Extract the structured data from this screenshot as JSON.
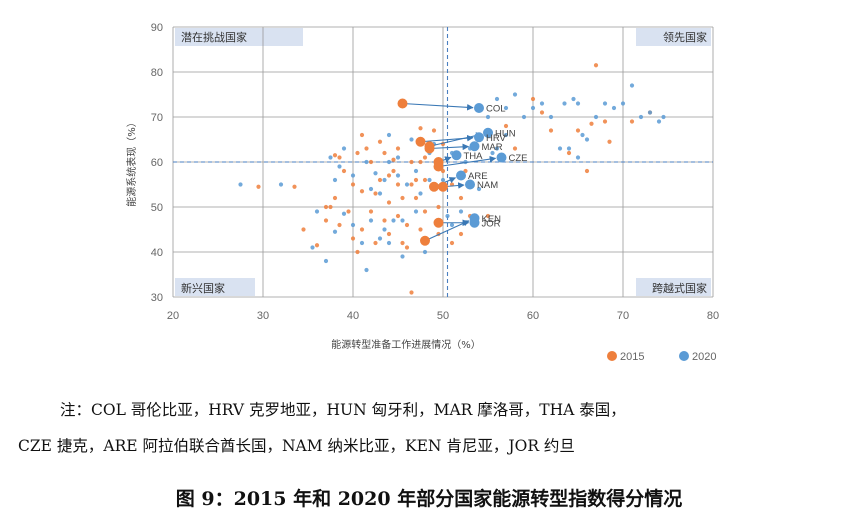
{
  "chart_data": {
    "type": "scatter",
    "xlabel": "能源转型准备工作进展情况（%）",
    "ylabel": "能源系统表现（%）",
    "xlim": [
      20,
      80
    ],
    "ylim": [
      30,
      90
    ],
    "xticks": [
      20,
      30,
      40,
      50,
      60,
      70,
      80
    ],
    "yticks": [
      30,
      40,
      50,
      60,
      70,
      80,
      90
    ],
    "ref_x": 50.5,
    "ref_y": 60,
    "grid": true,
    "legend_position": "bottom-right",
    "colors": {
      "2015": "#ee7f3c",
      "2020": "#5b9bd5",
      "quadrant_bg": "#d9e2f1",
      "grid": "#999999",
      "arrow": "#3a78b5"
    },
    "quadrants": {
      "top_left": "潜在挑战国家",
      "top_right": "领先国家",
      "bottom_left": "新兴国家",
      "bottom_right": "跨越式国家"
    },
    "series": [
      {
        "name": "2015",
        "color": "#ee7f3c",
        "points": [
          [
            29.5,
            54.5
          ],
          [
            33.5,
            54.5
          ],
          [
            34.5,
            45
          ],
          [
            36,
            41.5
          ],
          [
            37,
            47
          ],
          [
            37,
            50
          ],
          [
            37.5,
            50
          ],
          [
            38,
            52
          ],
          [
            38,
            61.5
          ],
          [
            38.5,
            46
          ],
          [
            38.5,
            61
          ],
          [
            39,
            58
          ],
          [
            39.5,
            49
          ],
          [
            40,
            55
          ],
          [
            40,
            43
          ],
          [
            40.5,
            62
          ],
          [
            40.5,
            40
          ],
          [
            41,
            45
          ],
          [
            41,
            53.5
          ],
          [
            41,
            66
          ],
          [
            41.5,
            63
          ],
          [
            42,
            60
          ],
          [
            42,
            49
          ],
          [
            42.5,
            42
          ],
          [
            42.5,
            53
          ],
          [
            43,
            56
          ],
          [
            43,
            64.5
          ],
          [
            43.5,
            47
          ],
          [
            43.5,
            62
          ],
          [
            44,
            44
          ],
          [
            44,
            51
          ],
          [
            44,
            57
          ],
          [
            44.5,
            58
          ],
          [
            44.5,
            60.5
          ],
          [
            45,
            48
          ],
          [
            45,
            55
          ],
          [
            45,
            63
          ],
          [
            45.5,
            42
          ],
          [
            45.5,
            52
          ],
          [
            46,
            41
          ],
          [
            46,
            46
          ],
          [
            46.5,
            55
          ],
          [
            46.5,
            60
          ],
          [
            46.5,
            31
          ],
          [
            47,
            52
          ],
          [
            47,
            56
          ],
          [
            47.5,
            45
          ],
          [
            47.5,
            60
          ],
          [
            47.5,
            67.5
          ],
          [
            48,
            49
          ],
          [
            48,
            56
          ],
          [
            48,
            61
          ],
          [
            49,
            67
          ],
          [
            49.5,
            44
          ],
          [
            49.5,
            50
          ],
          [
            50,
            58
          ],
          [
            50,
            64
          ],
          [
            51,
            42
          ],
          [
            51,
            55
          ],
          [
            52,
            44
          ],
          [
            52,
            52
          ],
          [
            52.5,
            58
          ],
          [
            53,
            48
          ],
          [
            55,
            48
          ],
          [
            57,
            68
          ],
          [
            58,
            63
          ],
          [
            60,
            74
          ],
          [
            61,
            71
          ],
          [
            62,
            67
          ],
          [
            64,
            62
          ],
          [
            65,
            67
          ],
          [
            66,
            58
          ],
          [
            66.5,
            68.5
          ],
          [
            67,
            81.5
          ],
          [
            68,
            69
          ],
          [
            68.5,
            64.5
          ],
          [
            71,
            69
          ],
          [
            73,
            71
          ]
        ]
      },
      {
        "name": "2020",
        "color": "#5b9bd5",
        "points": [
          [
            27.5,
            55
          ],
          [
            32,
            55
          ],
          [
            35.5,
            41
          ],
          [
            36,
            49
          ],
          [
            37,
            38
          ],
          [
            37.5,
            61
          ],
          [
            38,
            44.5
          ],
          [
            38,
            56
          ],
          [
            38.5,
            59
          ],
          [
            39,
            48.5
          ],
          [
            39,
            63
          ],
          [
            40,
            57
          ],
          [
            40,
            46
          ],
          [
            41,
            42
          ],
          [
            41.5,
            36
          ],
          [
            41.5,
            60
          ],
          [
            42,
            47
          ],
          [
            42,
            54
          ],
          [
            42.5,
            57.5
          ],
          [
            43,
            43
          ],
          [
            43,
            53
          ],
          [
            43.5,
            45
          ],
          [
            43.5,
            56
          ],
          [
            44,
            60
          ],
          [
            44,
            42
          ],
          [
            44,
            66
          ],
          [
            44.5,
            47
          ],
          [
            45,
            57
          ],
          [
            45,
            61
          ],
          [
            45.5,
            39
          ],
          [
            45.5,
            47
          ],
          [
            46,
            55
          ],
          [
            46.5,
            65
          ],
          [
            47,
            49
          ],
          [
            47,
            58
          ],
          [
            47.5,
            53
          ],
          [
            48,
            40
          ],
          [
            48.5,
            56
          ],
          [
            48.5,
            62
          ],
          [
            49,
            64
          ],
          [
            50,
            56
          ],
          [
            50.5,
            48
          ],
          [
            51,
            62
          ],
          [
            51,
            46
          ],
          [
            52,
            49
          ],
          [
            52.5,
            60
          ],
          [
            53,
            63
          ],
          [
            54,
            66
          ],
          [
            54,
            54
          ],
          [
            55,
            70
          ],
          [
            55.5,
            62
          ],
          [
            56,
            63
          ],
          [
            56,
            74
          ],
          [
            57,
            72
          ],
          [
            57,
            66
          ],
          [
            58,
            75
          ],
          [
            59,
            70
          ],
          [
            60,
            72
          ],
          [
            61,
            73
          ],
          [
            62,
            70
          ],
          [
            63,
            63
          ],
          [
            64,
            63
          ],
          [
            65,
            61
          ],
          [
            65,
            73
          ],
          [
            65.5,
            66
          ],
          [
            66,
            65
          ],
          [
            67,
            70
          ],
          [
            68,
            73
          ],
          [
            69,
            72
          ],
          [
            70,
            73
          ],
          [
            71,
            77
          ],
          [
            72,
            70
          ],
          [
            73,
            71
          ],
          [
            74,
            69
          ],
          [
            74.5,
            70
          ],
          [
            63.5,
            73
          ],
          [
            64.5,
            74
          ]
        ]
      }
    ],
    "highlights": [
      {
        "label": "COL",
        "from": [
          45.5,
          73
        ],
        "to": [
          54,
          72
        ]
      },
      {
        "label": "HRV",
        "from": [
          47.5,
          64.5
        ],
        "to": [
          54,
          65.5
        ]
      },
      {
        "label": "HUN",
        "from": [
          48.5,
          63.5
        ],
        "to": [
          55,
          66.5
        ]
      },
      {
        "label": "MAR",
        "from": [
          48.5,
          63
        ],
        "to": [
          53.5,
          63.5
        ]
      },
      {
        "label": "THA",
        "from": [
          49.5,
          60
        ],
        "to": [
          51.5,
          61.5
        ]
      },
      {
        "label": "CZE",
        "from": [
          49.5,
          59
        ],
        "to": [
          56.5,
          61
        ]
      },
      {
        "label": "ARE",
        "from": [
          49,
          54.5
        ],
        "to": [
          52,
          57
        ]
      },
      {
        "label": "NAM",
        "from": [
          50,
          54.5
        ],
        "to": [
          53,
          55
        ]
      },
      {
        "label": "KEN",
        "from": [
          48,
          42.5
        ],
        "to": [
          53.5,
          47.5
        ]
      },
      {
        "label": "JOR",
        "from": [
          49.5,
          46.5
        ],
        "to": [
          53.5,
          46.5
        ]
      }
    ]
  },
  "note_line1": "注：COL 哥伦比亚，HRV 克罗地亚，HUN 匈牙利，MAR 摩洛哥，THA 泰国，",
  "note_line2": "CZE 捷克，ARE 阿拉伯联合酋长国，NAM 纳米比亚，KEN 肯尼亚，JOR 约旦",
  "caption": "图 9：2015 年和 2020 年部分国家能源转型指数得分情况"
}
